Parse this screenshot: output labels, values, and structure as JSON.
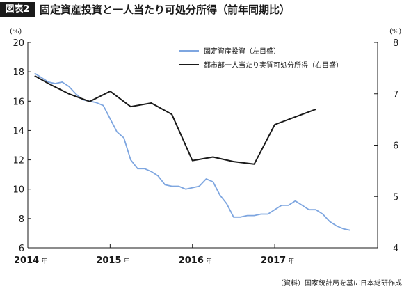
{
  "header": {
    "figure_label": "図表2",
    "title": "固定資産投資と一人当たり可処分所得（前年同期比）"
  },
  "chart_data": {
    "type": "line",
    "left_axis": {
      "unit": "(%)",
      "ylim": [
        6,
        20
      ],
      "ticks": [
        6,
        8,
        10,
        12,
        14,
        16,
        18,
        20
      ]
    },
    "right_axis": {
      "unit": "(%)",
      "ylim": [
        4,
        8
      ],
      "ticks": [
        4,
        5,
        6,
        7,
        8
      ]
    },
    "x_axis": {
      "xlim": [
        2014.0,
        2018.25
      ],
      "years": [
        {
          "x": 2014.0,
          "label": "2014",
          "suffix": "年"
        },
        {
          "x": 2015.0,
          "label": "2015",
          "suffix": "年"
        },
        {
          "x": 2016.0,
          "label": "2016",
          "suffix": "年"
        },
        {
          "x": 2017.0,
          "label": "2017",
          "suffix": "年"
        }
      ]
    },
    "grid": false,
    "legend_position": "top-right",
    "series": [
      {
        "name": "固定資産投資（左目盛）",
        "axis": "left",
        "color": "#7ea6e0",
        "x": [
          2014.083,
          2014.167,
          2014.25,
          2014.333,
          2014.417,
          2014.5,
          2014.583,
          2014.667,
          2014.75,
          2014.833,
          2014.917,
          2015.083,
          2015.167,
          2015.25,
          2015.333,
          2015.417,
          2015.5,
          2015.583,
          2015.667,
          2015.75,
          2015.833,
          2015.917,
          2016.083,
          2016.167,
          2016.25,
          2016.333,
          2016.417,
          2016.5,
          2016.583,
          2016.667,
          2016.75,
          2016.833,
          2016.917,
          2017.083,
          2017.167,
          2017.25,
          2017.333,
          2017.417,
          2017.5,
          2017.583,
          2017.667,
          2017.75,
          2017.833,
          2017.917
        ],
        "values": [
          17.9,
          17.6,
          17.3,
          17.2,
          17.3,
          17.0,
          16.5,
          16.1,
          16.0,
          15.9,
          15.7,
          13.9,
          13.5,
          12.0,
          11.4,
          11.4,
          11.2,
          10.9,
          10.3,
          10.2,
          10.2,
          10.0,
          10.2,
          10.7,
          10.5,
          9.6,
          9.0,
          8.1,
          8.1,
          8.2,
          8.2,
          8.3,
          8.3,
          8.9,
          8.9,
          9.2,
          8.9,
          8.6,
          8.6,
          8.3,
          7.8,
          7.5,
          7.3,
          7.2
        ]
      },
      {
        "name": "都市部一人当たり実質可処分所得（右目盛）",
        "axis": "right",
        "color": "#1a1a1a",
        "x": [
          2014.083,
          2014.25,
          2014.5,
          2014.75,
          2015.0,
          2015.25,
          2015.5,
          2015.75,
          2016.0,
          2016.25,
          2016.5,
          2016.75,
          2017.0,
          2017.25,
          2017.5
        ],
        "values": [
          7.35,
          7.2,
          7.0,
          6.85,
          7.05,
          6.75,
          6.82,
          6.6,
          5.7,
          5.77,
          5.68,
          5.63,
          6.4,
          6.55,
          6.7
        ]
      }
    ]
  },
  "source": "（資料）国家統計局を基に日本総研作成"
}
